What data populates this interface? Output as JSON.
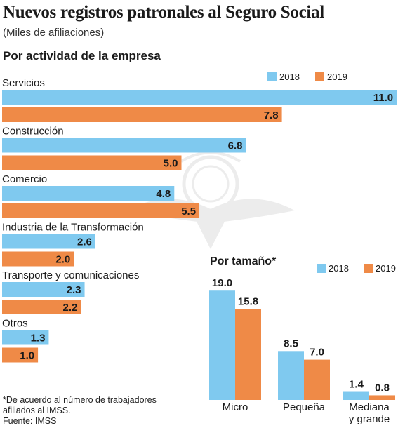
{
  "title": "Nuevos registros patronales al Seguro Social",
  "subtitle": "(Miles de afiliaciones)",
  "colors": {
    "s2018": "#7fc9ef",
    "s2019": "#ef8a47",
    "text": "#1a1a1a",
    "watermark": "#ececec"
  },
  "watermark": {
    "icon": "eagle-seal-icon"
  },
  "chart_data": [
    {
      "type": "bar",
      "orientation": "horizontal",
      "title": "Por actividad de la empresa",
      "legend_position": "top-right",
      "categories": [
        "Servicios",
        "Construcción",
        "Comercio",
        "Industria de la Transformación",
        "Transporte y comunicaciones",
        "Otros"
      ],
      "series": [
        {
          "name": "2018",
          "values": [
            11.0,
            6.8,
            4.8,
            2.6,
            2.3,
            1.3
          ],
          "value_labels": [
            "11.0",
            "6.8",
            "4.8",
            "2.6",
            "2.3",
            "1.3"
          ]
        },
        {
          "name": "2019",
          "values": [
            7.8,
            5.0,
            5.5,
            2.0,
            2.2,
            1.0
          ],
          "value_labels": [
            "7.8",
            "5.0",
            "5.5",
            "2.0",
            "2.2",
            "1.0"
          ]
        }
      ]
    },
    {
      "type": "bar",
      "orientation": "vertical",
      "title": "Por tamaño*",
      "legend_position": "top-right",
      "categories": [
        [
          "Micro"
        ],
        [
          "Pequeña"
        ],
        [
          "Mediana",
          "y grande"
        ]
      ],
      "series": [
        {
          "name": "2018",
          "values": [
            19.0,
            8.5,
            1.4
          ],
          "value_labels": [
            "19.0",
            "8.5",
            "1.4"
          ]
        },
        {
          "name": "2019",
          "values": [
            15.8,
            7.0,
            0.8
          ],
          "value_labels": [
            "15.8",
            "7.0",
            "0.8"
          ]
        }
      ]
    }
  ],
  "footnote": {
    "line1": "*De acuerdo al número de trabajadores",
    "line2": "afiliados al IMSS.",
    "source": "Fuente: IMSS"
  }
}
